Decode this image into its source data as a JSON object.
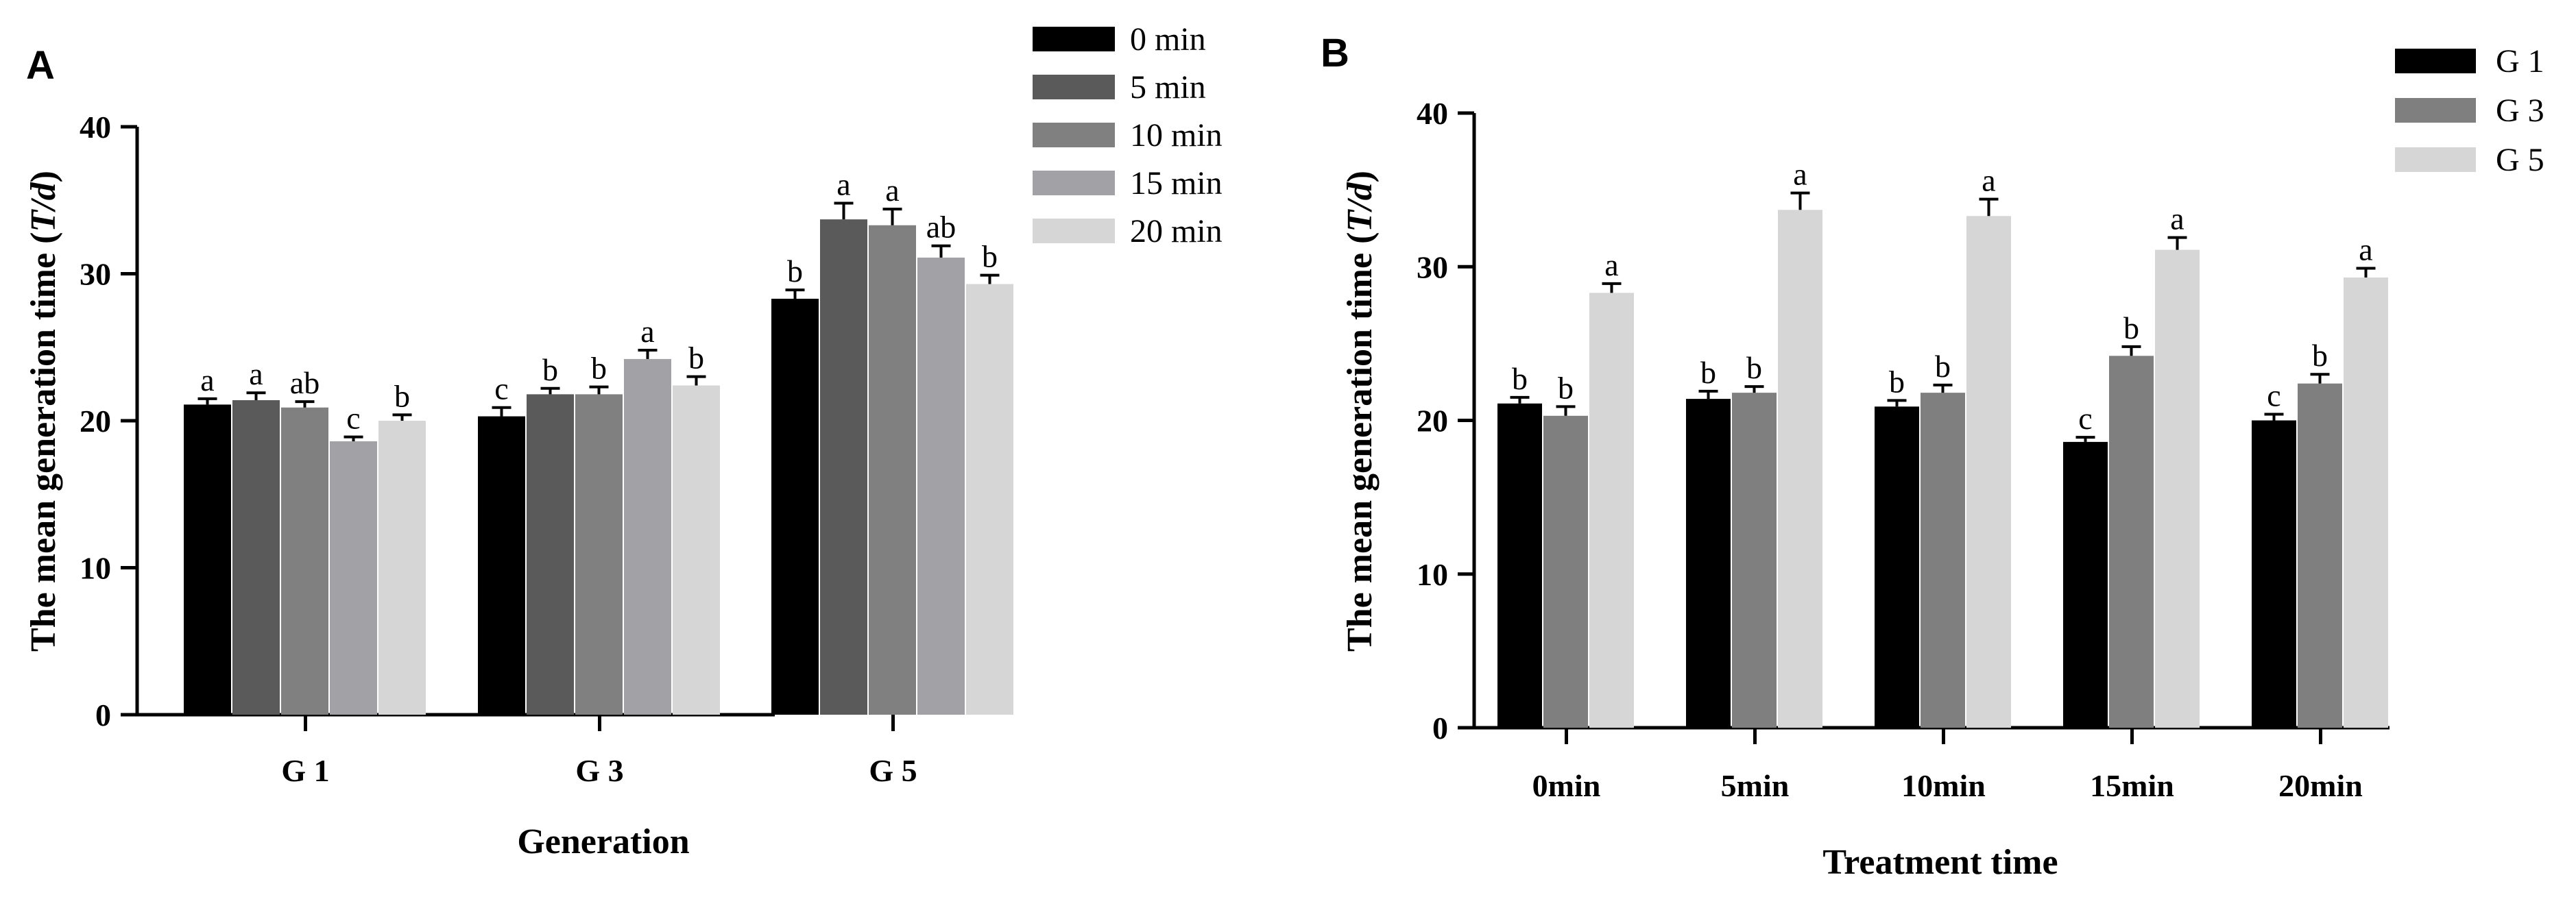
{
  "chart_data": [
    {
      "panel": "A",
      "type": "bar",
      "ylabel_prefix": "The mean generation time (",
      "ylabel_unit": "T/d",
      "ylabel_suffix": ")",
      "xlabel": "Generation",
      "ylim": [
        0,
        40
      ],
      "yticks": [
        0,
        10,
        20,
        30,
        40
      ],
      "categories": [
        "G 1",
        "G 3",
        "G 5"
      ],
      "legend_position": "top-right",
      "series": [
        {
          "name": "0 min",
          "color": "#000000",
          "values": [
            21.1,
            20.3,
            28.3
          ],
          "errors": [
            0.4,
            0.6,
            0.6
          ],
          "labels": [
            "a",
            "c",
            "b"
          ]
        },
        {
          "name": "5 min",
          "color": "#5a5a5a",
          "values": [
            21.4,
            21.8,
            33.7
          ],
          "errors": [
            0.5,
            0.4,
            1.1
          ],
          "labels": [
            "a",
            "b",
            "a"
          ]
        },
        {
          "name": "10 min",
          "color": "#808080",
          "values": [
            20.9,
            21.8,
            33.3
          ],
          "errors": [
            0.4,
            0.5,
            1.1
          ],
          "labels": [
            "ab",
            "b",
            "a"
          ]
        },
        {
          "name": "15 min",
          "color": "#a1a1a6",
          "values": [
            18.6,
            24.2,
            31.1
          ],
          "errors": [
            0.3,
            0.6,
            0.8
          ],
          "labels": [
            "c",
            "a",
            "ab"
          ]
        },
        {
          "name": "20 min",
          "color": "#d6d6d6",
          "values": [
            20.0,
            22.4,
            29.3
          ],
          "errors": [
            0.4,
            0.6,
            0.6
          ],
          "labels": [
            "b",
            "b",
            "b"
          ]
        }
      ]
    },
    {
      "panel": "B",
      "type": "bar",
      "ylabel_prefix": "The mean generation time (",
      "ylabel_unit": "T/d",
      "ylabel_suffix": ")",
      "xlabel": "Treatment time",
      "ylim": [
        0,
        40
      ],
      "yticks": [
        0,
        10,
        20,
        30,
        40
      ],
      "categories": [
        "0min",
        "5min",
        "10min",
        "15min",
        "20min"
      ],
      "legend_position": "top-right",
      "series": [
        {
          "name": "G 1",
          "color": "#000000",
          "values": [
            21.1,
            21.4,
            20.9,
            18.6,
            20.0
          ],
          "errors": [
            0.4,
            0.5,
            0.4,
            0.3,
            0.4
          ],
          "labels": [
            "b",
            "b",
            "b",
            "c",
            "c"
          ]
        },
        {
          "name": "G 3",
          "color": "#7f7f7f",
          "values": [
            20.3,
            21.8,
            21.8,
            24.2,
            22.4
          ],
          "errors": [
            0.6,
            0.4,
            0.5,
            0.6,
            0.6
          ],
          "labels": [
            "b",
            "b",
            "b",
            "b",
            "b"
          ]
        },
        {
          "name": "G 5",
          "color": "#d6d6d6",
          "values": [
            28.3,
            33.7,
            33.3,
            31.1,
            29.3
          ],
          "errors": [
            0.6,
            1.1,
            1.1,
            0.8,
            0.6
          ],
          "labels": [
            "a",
            "a",
            "a",
            "a",
            "a"
          ]
        }
      ]
    }
  ]
}
